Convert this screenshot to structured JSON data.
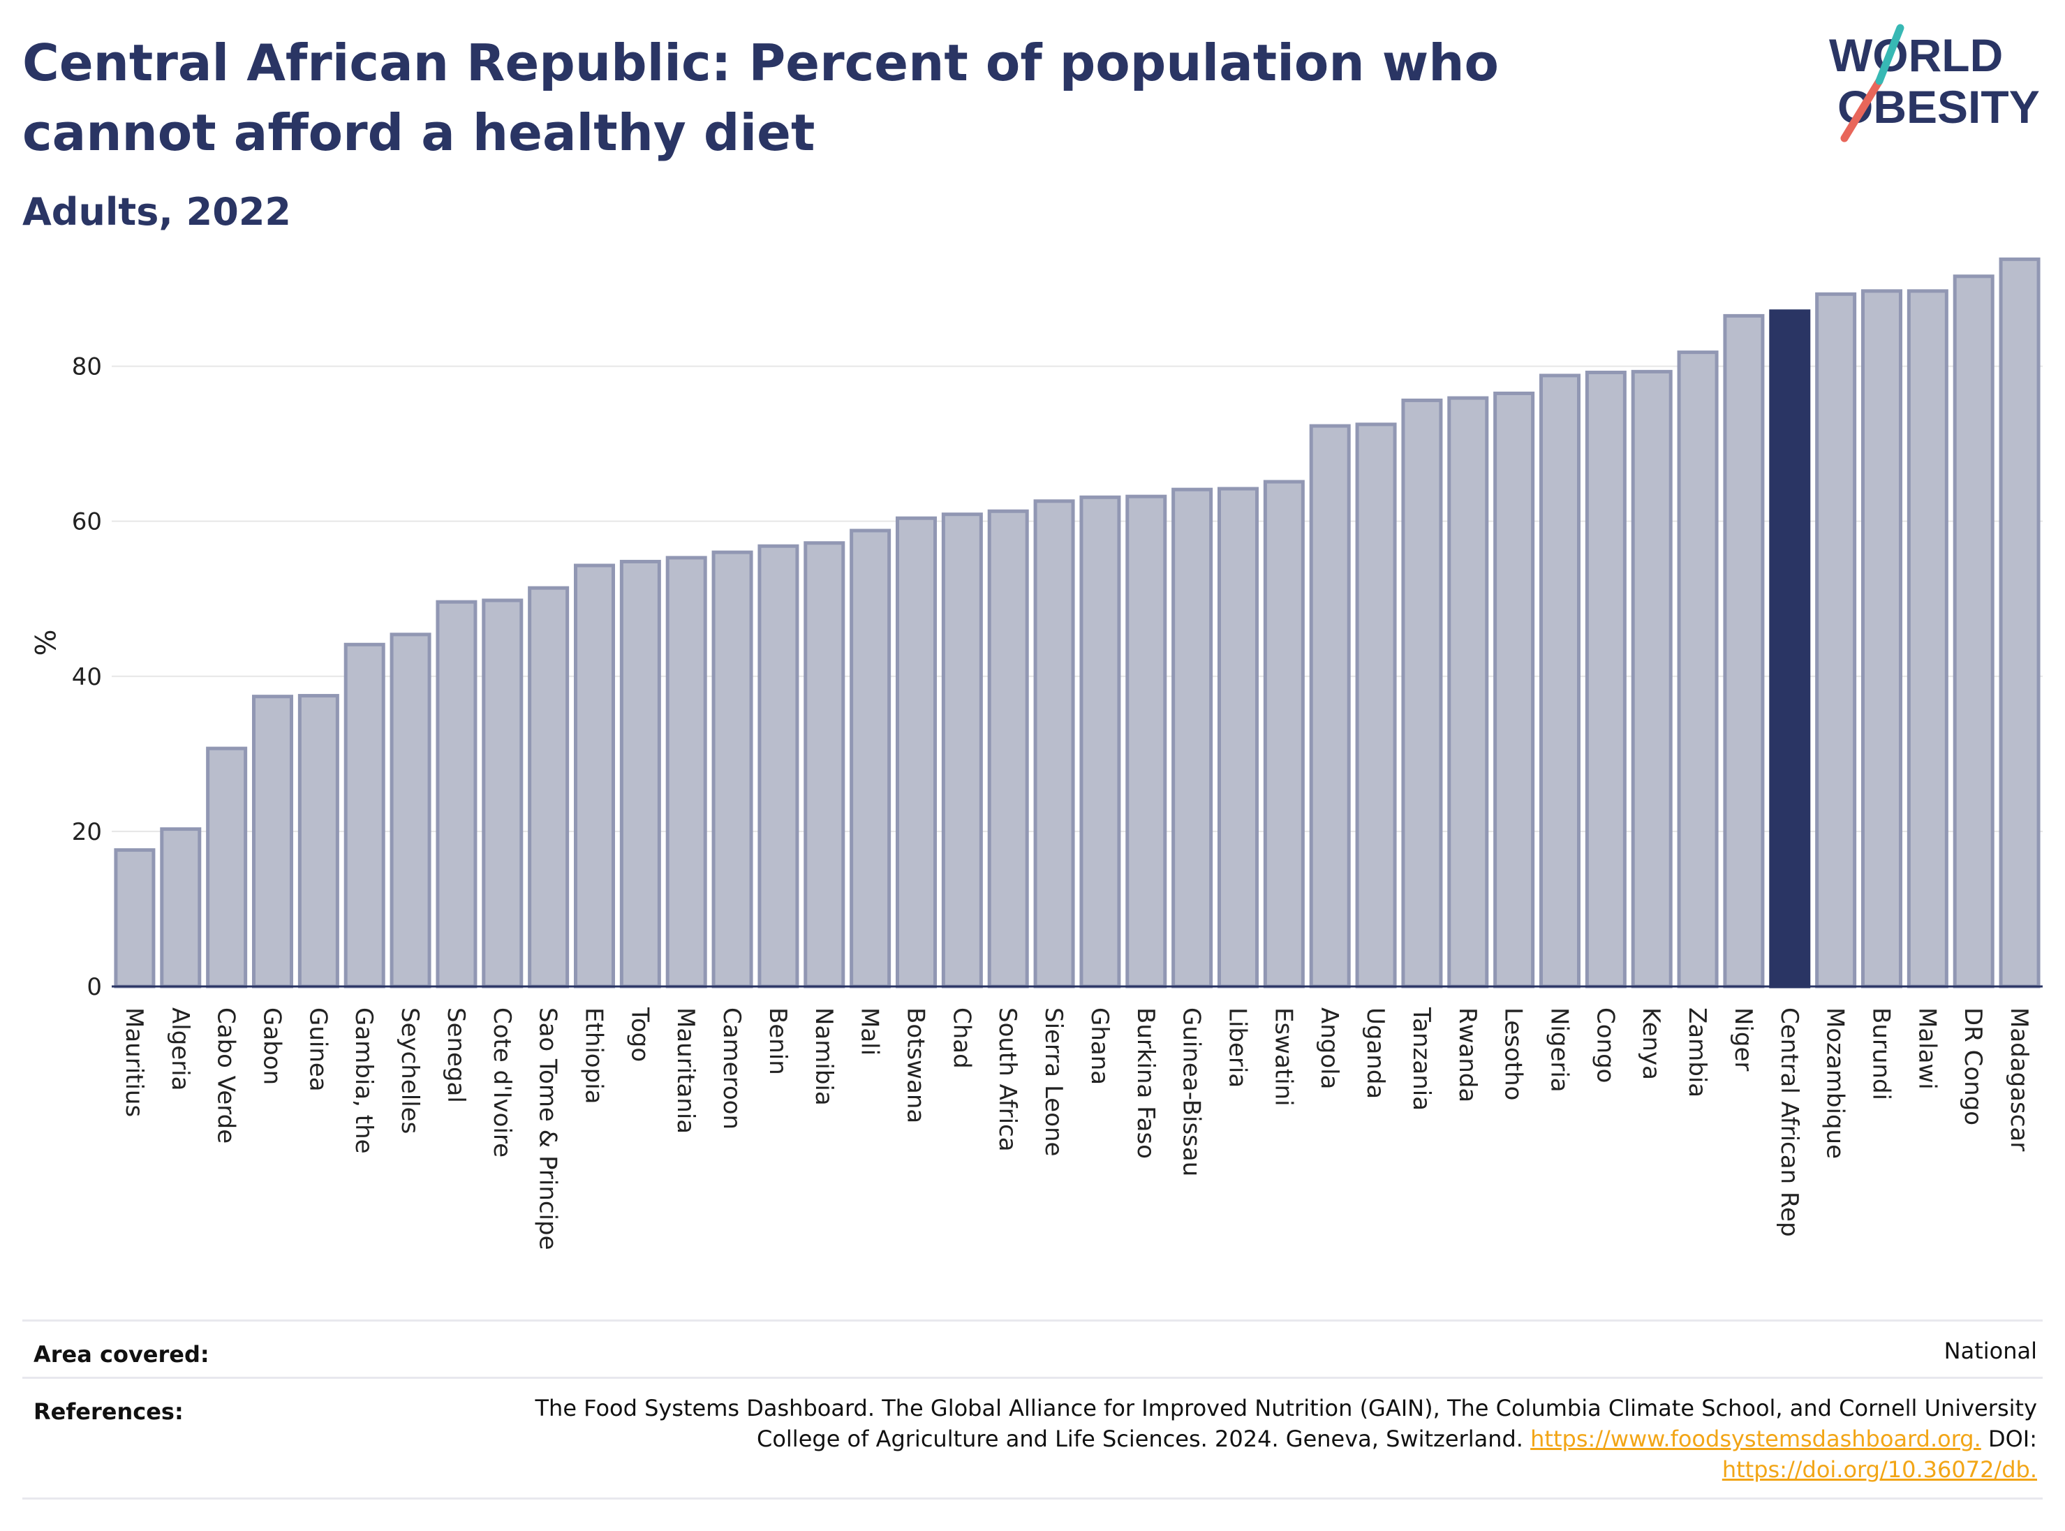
{
  "header": {
    "title": "Central African Republic: Percent of population who cannot afford a healthy diet",
    "subtitle": "Adults, 2022",
    "logo_line1": "WORLD",
    "logo_line2": "OBESITY"
  },
  "chart_data": {
    "type": "bar",
    "ylabel": "%",
    "xlabel": "",
    "ylim": [
      0,
      95
    ],
    "yticks": [
      0,
      20,
      40,
      60,
      80
    ],
    "grid": true,
    "highlight": "Central African Rep",
    "colors": {
      "bar_fill": "#b9bdcc",
      "bar_stroke": "#9197b3",
      "highlight": "#2a3564",
      "grid": "#e6e6e6",
      "axis": "#2a3564"
    },
    "categories": [
      "Mauritius",
      "Algeria",
      "Cabo Verde",
      "Gabon",
      "Guinea",
      "Gambia, the",
      "Seychelles",
      "Senegal",
      "Cote d'Ivoire",
      "Sao Tome & Principe",
      "Ethiopia",
      "Togo",
      "Mauritania",
      "Cameroon",
      "Benin",
      "Namibia",
      "Mali",
      "Botswana",
      "Chad",
      "South Africa",
      "Sierra Leone",
      "Ghana",
      "Burkina Faso",
      "Guinea-Bissau",
      "Liberia",
      "Eswatini",
      "Angola",
      "Uganda",
      "Tanzania",
      "Rwanda",
      "Lesotho",
      "Nigeria",
      "Congo",
      "Kenya",
      "Zambia",
      "Niger",
      "Central African Rep",
      "Mozambique",
      "Burundi",
      "Malawi",
      "DR Congo",
      "Madagascar"
    ],
    "values": [
      17.6,
      20.3,
      30.7,
      37.4,
      37.5,
      44.1,
      45.4,
      49.6,
      49.8,
      51.4,
      54.3,
      54.8,
      55.3,
      56.0,
      56.8,
      57.2,
      58.8,
      60.4,
      60.9,
      61.3,
      62.6,
      63.1,
      63.2,
      64.1,
      64.2,
      65.1,
      72.3,
      72.5,
      75.6,
      75.9,
      76.5,
      78.8,
      79.2,
      79.3,
      81.8,
      86.5,
      87.1,
      89.3,
      89.7,
      89.7,
      91.6,
      93.8
    ]
  },
  "info": {
    "area_label": "Area covered:",
    "area_value": "National",
    "references_label": "References:",
    "references_line1": "The Food Systems Dashboard. The Global Alliance for Improved Nutrition (GAIN), The Columbia Climate School, and Cornell University",
    "references_line2": "College of Agriculture and Life Sciences. 2024. Geneva, Switzerland.",
    "references_link1": "https://www.foodsystemsdashboard.org.",
    "references_doi": "DOI:",
    "references_link2": "https://doi.org/10.36072/db."
  }
}
